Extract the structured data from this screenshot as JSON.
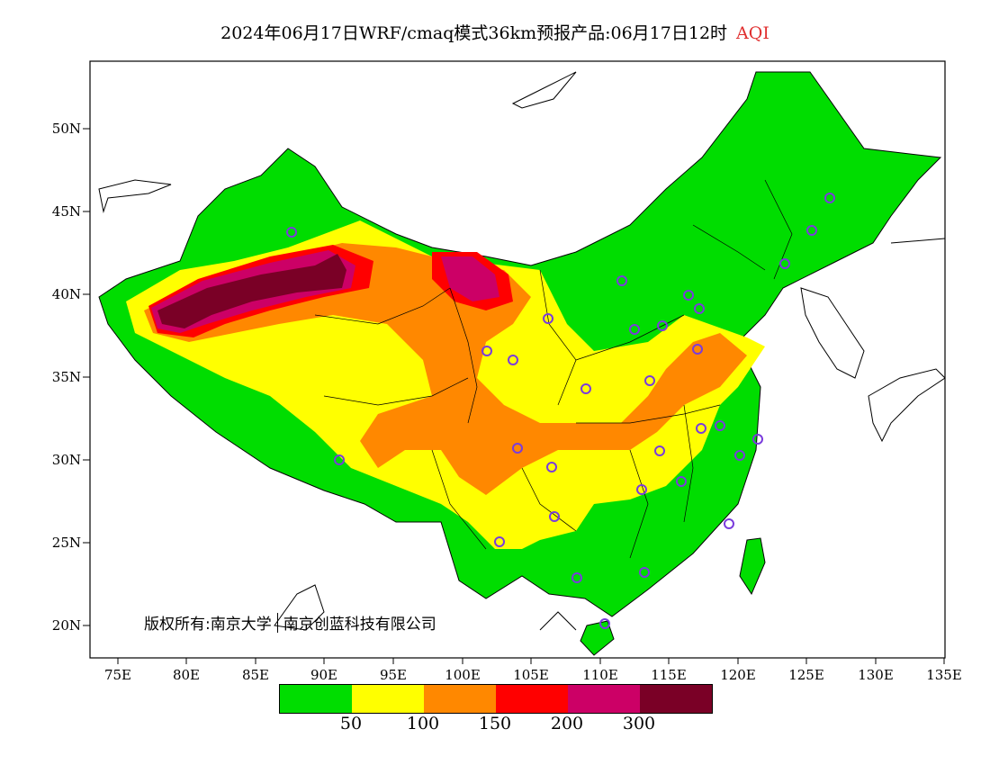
{
  "title": {
    "main": "2024年06月17日WRF/cmaq模式36km预报产品:06月17日12时",
    "variable": "AQI",
    "variable_color": "#e03030"
  },
  "copyright": {
    "prefix": "版权所有:南京大学",
    "suffix": "南京创蓝科技有限公司"
  },
  "axes": {
    "lat_labels": [
      "50N",
      "45N",
      "40N",
      "35N",
      "30N",
      "25N",
      "20N"
    ],
    "lon_labels": [
      "75E",
      "80E",
      "85E",
      "90E",
      "95E",
      "100E",
      "105E",
      "110E",
      "115E",
      "120E",
      "125E",
      "130E",
      "135E"
    ]
  },
  "colorbar": {
    "colors": [
      "#00dd00",
      "#ffff00",
      "#ff8800",
      "#ff0000",
      "#cc0066",
      "#7a0026"
    ],
    "labels": [
      "50",
      "100",
      "150",
      "200",
      "300"
    ]
  },
  "colors": {
    "good": "#00dd00",
    "moderate": "#ffff00",
    "sensitive": "#ff8800",
    "unhealthy": "#ff0000",
    "very_unhealthy": "#cc0066",
    "hazardous": "#7a0026",
    "station_marker": "#7a3cdc"
  }
}
